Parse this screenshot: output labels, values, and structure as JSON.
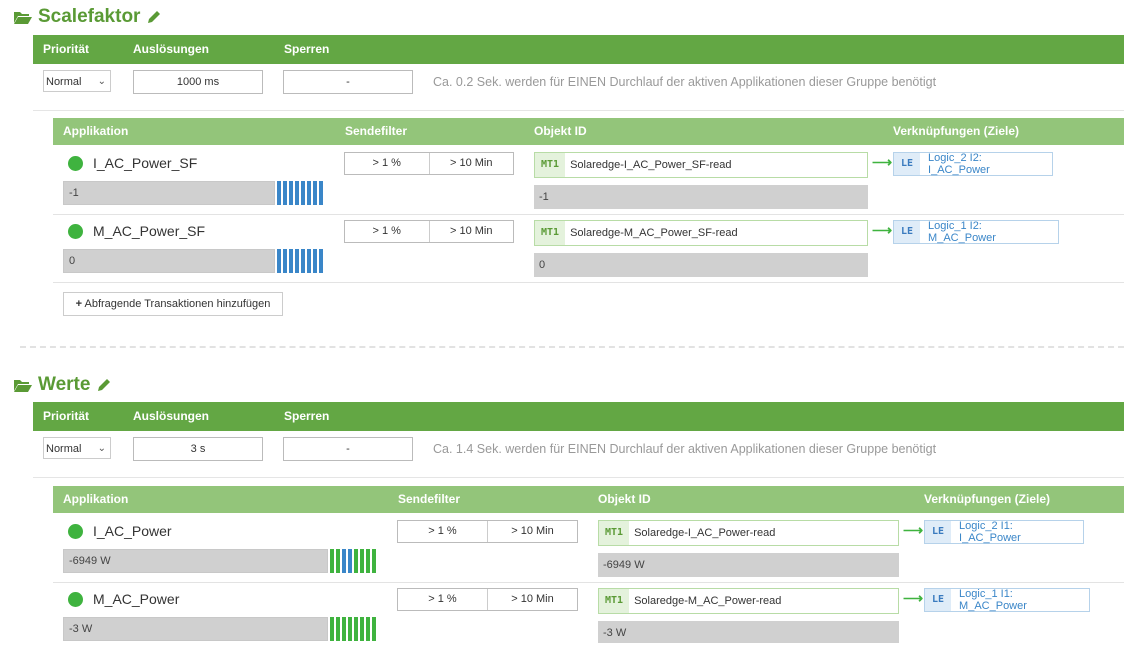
{
  "groups": [
    {
      "title": "Scalefaktor",
      "ctrl_headers": {
        "prio": "Priorität",
        "trig": "Auslösungen",
        "lock": "Sperren"
      },
      "prio": "Normal",
      "trigger": "1000 ms",
      "lock": "-",
      "note": "Ca. 0.2 Sek. werden für EINEN Durchlauf der aktiven Applikationen dieser Gruppe benötigt",
      "app_headers": {
        "app": "Applikation",
        "filter": "Sendefilter",
        "obj": "Objekt ID",
        "links": "Verknüpfungen (Ziele)"
      },
      "rows": [
        {
          "name": "I_AC_Power_SF",
          "value": "-1",
          "filter_a": "> 1 %",
          "filter_b": "> 10 Min",
          "mt": "MT1",
          "object_id": "Solaredge-I_AC_Power_SF-read",
          "object_value": "-1",
          "le": "LE",
          "link": "Logic_2 I2: I_AC_Power"
        },
        {
          "name": "M_AC_Power_SF",
          "value": "0",
          "filter_a": "> 1 %",
          "filter_b": "> 10 Min",
          "mt": "MT1",
          "object_id": "Solaredge-M_AC_Power_SF-read",
          "object_value": "0",
          "le": "LE",
          "link": "Logic_1 I2: M_AC_Power"
        }
      ],
      "add_button": "Abfragende Transaktionen hinzufügen"
    },
    {
      "title": "Werte",
      "ctrl_headers": {
        "prio": "Priorität",
        "trig": "Auslösungen",
        "lock": "Sperren"
      },
      "prio": "Normal",
      "trigger": "3 s",
      "lock": "-",
      "note": "Ca. 1.4 Sek. werden für EINEN Durchlauf der aktiven Applikationen dieser Gruppe benötigt",
      "app_headers": {
        "app": "Applikation",
        "filter": "Sendefilter",
        "obj": "Objekt ID",
        "links": "Verknüpfungen (Ziele)"
      },
      "rows": [
        {
          "name": "I_AC_Power",
          "value": "-6949 W",
          "filter_a": "> 1 %",
          "filter_b": "> 10 Min",
          "mt": "MT1",
          "object_id": "Solaredge-I_AC_Power-read",
          "object_value": "-6949 W",
          "le": "LE",
          "link": "Logic_2 I1: I_AC_Power"
        },
        {
          "name": "M_AC_Power",
          "value": "-3 W",
          "filter_a": "> 1 %",
          "filter_b": "> 10 Min",
          "mt": "MT1",
          "object_id": "Solaredge-M_AC_Power-read",
          "object_value": "-3 W",
          "le": "LE",
          "link": "Logic_1 I1: M_AC_Power"
        }
      ]
    }
  ],
  "colors": {
    "green": "#63a744",
    "light_green": "#93c57a",
    "status_dot": "#3fb33f",
    "blue_bar": "#3a86c8"
  },
  "icons": {
    "folder": "folder-open-icon",
    "edit": "pencil-icon",
    "plus": "plus-icon",
    "arrow": "arrow-right-icon"
  }
}
